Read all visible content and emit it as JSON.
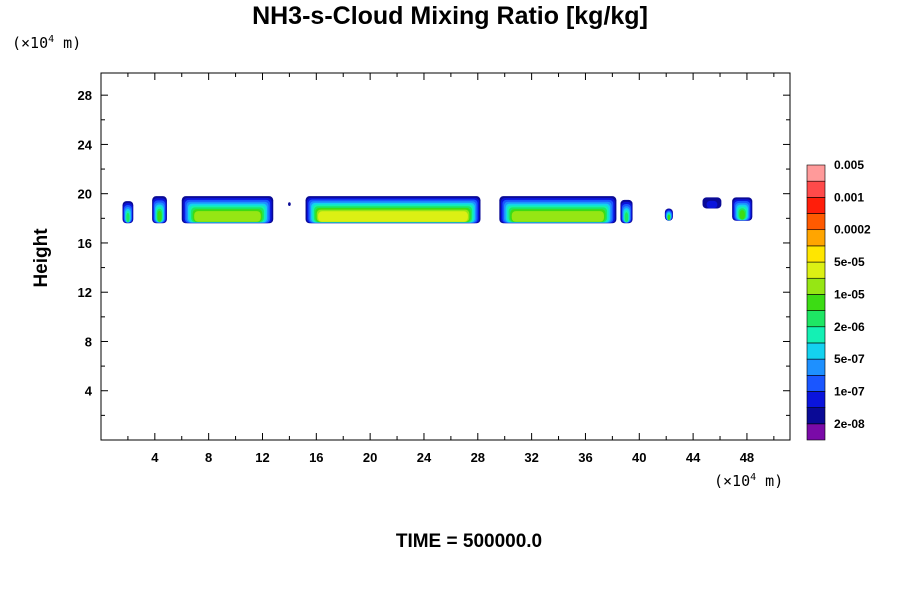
{
  "chart_data": {
    "type": "heatmap",
    "title": "NH3-s-Cloud Mixing Ratio [kg/kg]",
    "ylabel": "Height",
    "xlabel": "",
    "x_unit": {
      "prefix": "(×10",
      "exp": "4",
      "suffix": " m)"
    },
    "y_unit": {
      "prefix": "(×10",
      "exp": "4",
      "suffix": " m)"
    },
    "xlim": [
      0,
      51.2
    ],
    "ylim": [
      0,
      29.8
    ],
    "x_ticks": [
      4,
      8,
      12,
      16,
      20,
      24,
      28,
      32,
      36,
      40,
      44,
      48
    ],
    "y_ticks": [
      4,
      8,
      12,
      16,
      20,
      24,
      28
    ],
    "colorbar": {
      "colors": [
        "#7a0aa8",
        "#0a0a96",
        "#0a14dc",
        "#1a56ff",
        "#1e90ff",
        "#14d2f0",
        "#14f0b4",
        "#1ee664",
        "#3cdc14",
        "#96e614",
        "#dcf014",
        "#ffe600",
        "#ffa500",
        "#ff5a00",
        "#ff1e0a",
        "#ff4a4a",
        "#ff9a9a"
      ],
      "labels": [
        "2e-08",
        "1e-07",
        "5e-07",
        "2e-06",
        "1e-05",
        "5e-05",
        "0.0002",
        "0.001",
        "0.005"
      ]
    },
    "cloud_patches": [
      {
        "x": [
          1.6,
          2.4
        ],
        "y": [
          17.6,
          19.4
        ],
        "peak_level": 7
      },
      {
        "x": [
          3.8,
          4.9
        ],
        "y": [
          17.6,
          19.8
        ],
        "peak_level": 8
      },
      {
        "x": [
          6.0,
          12.8
        ],
        "y": [
          17.6,
          19.8
        ],
        "peak_level": 9
      },
      {
        "x": [
          13.9,
          14.1
        ],
        "y": [
          19.0,
          19.3
        ],
        "peak_level": 1
      },
      {
        "x": [
          15.2,
          28.2
        ],
        "y": [
          17.6,
          19.8
        ],
        "peak_level": 10
      },
      {
        "x": [
          29.6,
          38.3
        ],
        "y": [
          17.6,
          19.8
        ],
        "peak_level": 9
      },
      {
        "x": [
          38.6,
          39.5
        ],
        "y": [
          17.6,
          19.5
        ],
        "peak_level": 7
      },
      {
        "x": [
          41.9,
          42.5
        ],
        "y": [
          17.8,
          18.8
        ],
        "peak_level": 8
      },
      {
        "x": [
          44.7,
          46.1
        ],
        "y": [
          18.8,
          19.7
        ],
        "peak_level": 2
      },
      {
        "x": [
          46.9,
          48.4
        ],
        "y": [
          17.8,
          19.7
        ],
        "peak_level": 8
      }
    ]
  },
  "footer": {
    "time_label": "TIME = 500000.0"
  }
}
